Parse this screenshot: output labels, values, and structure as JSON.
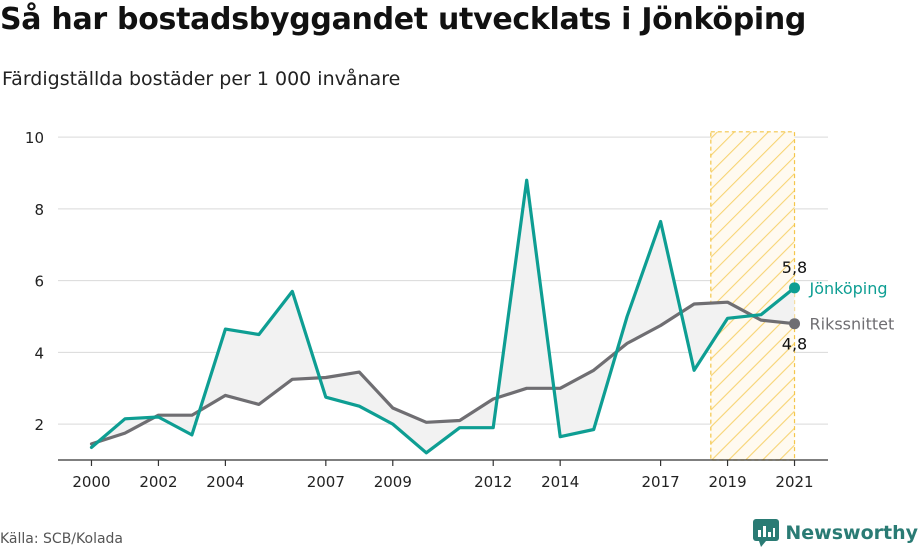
{
  "title": "Så har bostadsbyggandet utvecklats i Jönköping",
  "subtitle": "Färdigställda bostäder per 1 000 invånare",
  "source": "Källa: SCB/Kolada",
  "brand": "Newsworthy",
  "colors": {
    "jonkoping": "#0e9e93",
    "riks": "#6f6e72",
    "fill": "#f2f2f2",
    "highlight": "#f4c64a",
    "grid": "#d9d9d9",
    "brand": "#2a7b74"
  },
  "chart_data": {
    "type": "line",
    "ylim": [
      1,
      10.2
    ],
    "xlim": [
      1999.0,
      2022.0
    ],
    "y_ticks": [
      "2",
      "4",
      "6",
      "8",
      "10"
    ],
    "x_ticks": [
      "2000",
      "2002",
      "2004",
      "2007",
      "2009",
      "2012",
      "2014",
      "2017",
      "2019",
      "2021"
    ],
    "highlight_range": [
      2018.5,
      2021.0
    ],
    "x": [
      2000,
      2001,
      2002,
      2003,
      2004,
      2005,
      2006,
      2007,
      2008,
      2009,
      2010,
      2011,
      2012,
      2013,
      2014,
      2015,
      2016,
      2017,
      2018,
      2019,
      2020,
      2021
    ],
    "series": [
      {
        "name": "Jönköping",
        "end_label": "5,8",
        "values": [
          1.35,
          2.15,
          2.2,
          1.7,
          4.65,
          4.5,
          5.7,
          2.75,
          2.5,
          2.0,
          1.2,
          1.9,
          1.9,
          8.8,
          1.65,
          1.85,
          5.0,
          7.65,
          3.5,
          4.95,
          5.05,
          5.8
        ]
      },
      {
        "name": "Rikssnittet",
        "end_label": "4,8",
        "values": [
          1.45,
          1.75,
          2.25,
          2.25,
          2.8,
          2.55,
          3.25,
          3.3,
          3.45,
          2.45,
          2.05,
          2.1,
          2.7,
          3.0,
          3.0,
          3.5,
          4.25,
          4.75,
          5.35,
          5.4,
          4.9,
          4.8
        ]
      }
    ]
  }
}
